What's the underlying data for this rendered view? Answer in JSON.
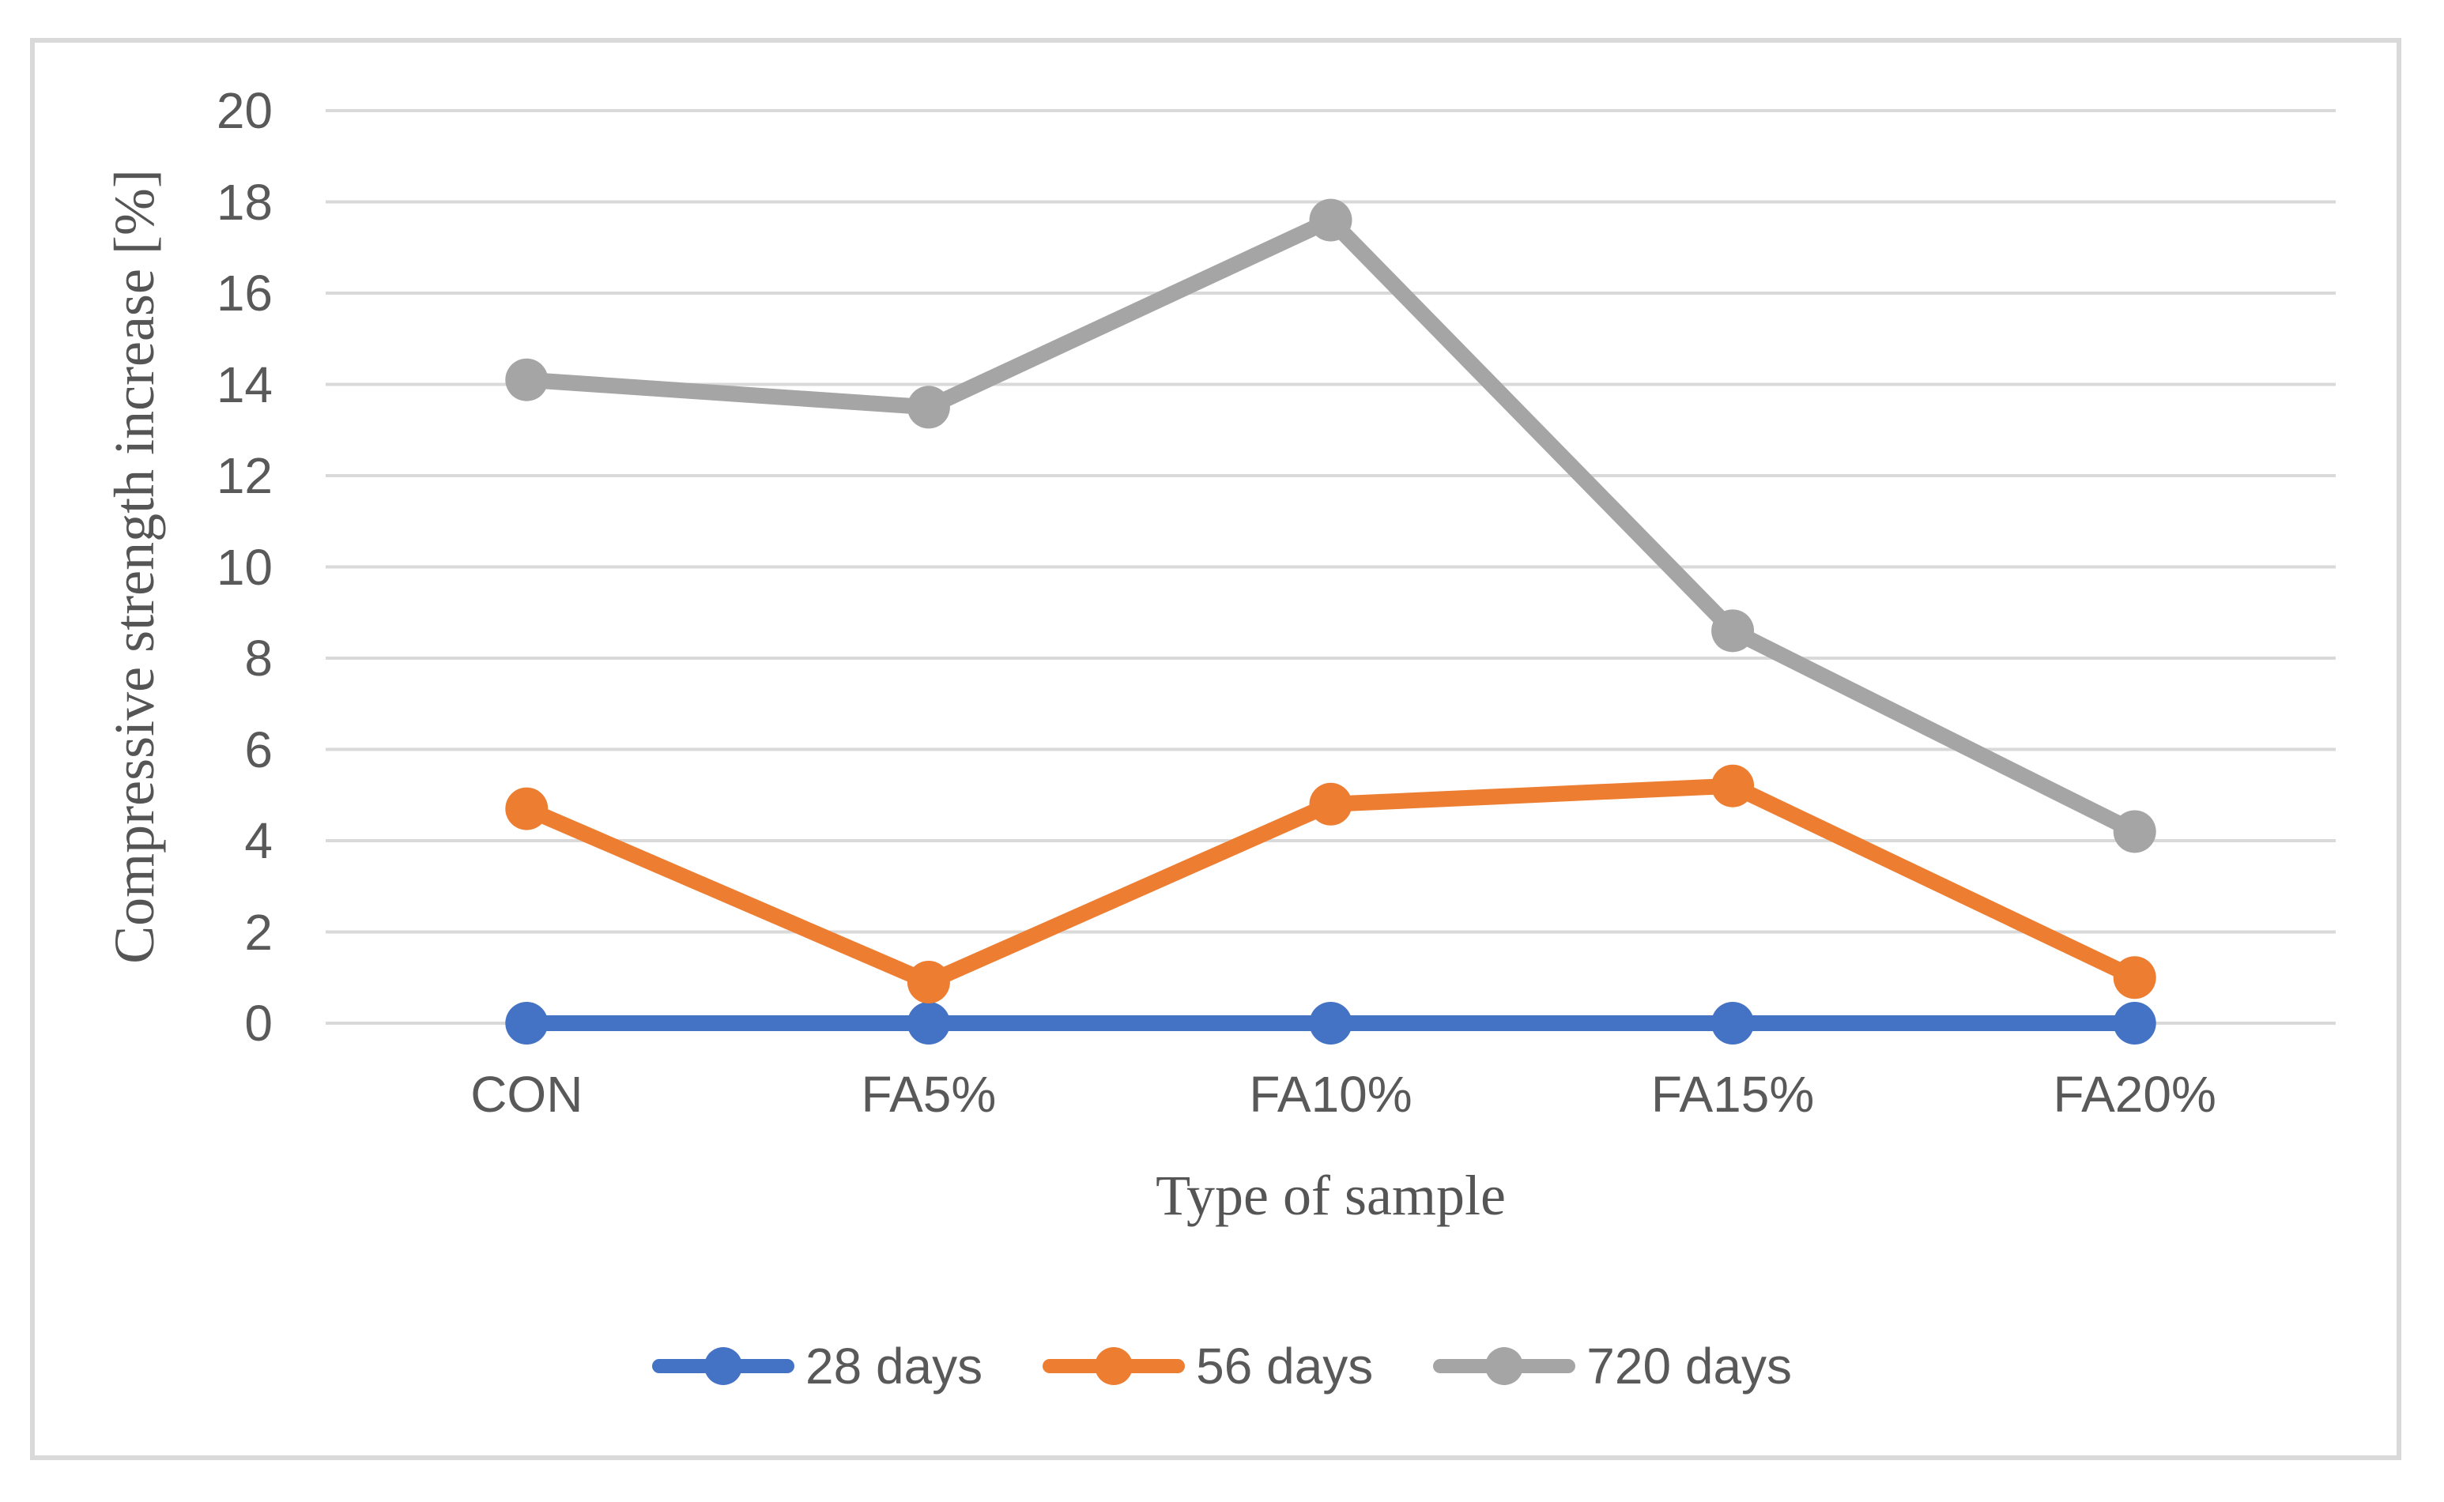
{
  "figure": {
    "background_color": "#FFFFFF",
    "border_color": "#D9D9D9",
    "gridline_color": "#D9D9D9",
    "tick_label_color": "#595959",
    "axis_title_color": "#555555"
  },
  "chart_data": {
    "type": "line",
    "categories": [
      "CON",
      "FA5%",
      "FA10%",
      "FA15%",
      "FA20%"
    ],
    "series": [
      {
        "name": "28 days",
        "color": "#4472C4",
        "values": [
          0,
          0,
          0,
          0,
          0
        ]
      },
      {
        "name": "56 days",
        "color": "#ED7D31",
        "values": [
          4.7,
          0.9,
          4.8,
          5.2,
          1.0
        ]
      },
      {
        "name": "720 days",
        "color": "#A5A5A5",
        "values": [
          14.1,
          13.5,
          17.6,
          8.6,
          4.2
        ]
      }
    ],
    "xlabel": "Type of sample",
    "ylabel": "Compressive strength increase [%]",
    "ylim": [
      0,
      20
    ],
    "yticks": [
      0,
      2,
      4,
      6,
      8,
      10,
      12,
      14,
      16,
      18,
      20
    ],
    "grid": "horizontal",
    "legend_position": "bottom",
    "marker": "circle"
  }
}
